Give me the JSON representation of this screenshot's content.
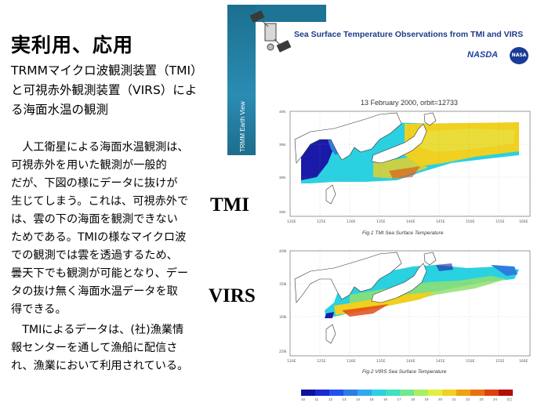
{
  "slide": {
    "title": "実利用、応用",
    "subtitle_lines": [
      "TRMMマイクロ波観測装置（TMI）",
      "と可視赤外観測装置（VIRS）によ",
      "る海面水温の観測"
    ],
    "body_lines": [
      "　人工衛星による海面水温観測は、",
      "可視赤外を用いた観測が一般的",
      "だが、下図の様にデータに抜けが",
      "生じてしまう。これは、可視赤外で",
      "は、雲の下の海面を観測できない",
      "ためである。TMIの様なマイクロ波",
      "での観測では雲を透過するため、",
      "曇天下でも観測が可能となり、デー",
      "タの抜け無く海面水温データを取",
      "得できる。",
      "　TMIによるデータは、(社)漁業情",
      "報センターを通して漁船に配信さ",
      "れ、漁業において利用されている。"
    ],
    "label_tmi": "TMI",
    "label_virs": "VIRS"
  },
  "figure": {
    "banner_title": "Sea Surface Temperature Observations from TMI and VIRS",
    "strip_text": "TRMM Earth View",
    "nasda": "NASDA",
    "nasa": "NASA",
    "date_line": "13 February 2000, orbit=12733",
    "fig1_caption": "Fig.1  TMI Sea Surface Temperature",
    "fig2_caption": "Fig.2  VIRS Sea Surface Temperature",
    "lat_ticks": [
      "40N",
      "35N",
      "30N",
      "25N"
    ],
    "lon_ticks": [
      "120E",
      "125E",
      "130E",
      "135E",
      "140E",
      "145E",
      "150E",
      "155E",
      "160E"
    ],
    "colorbar_ticks": [
      "10",
      "11",
      "12",
      "13",
      "14",
      "15",
      "16",
      "17",
      "18",
      "19",
      "20",
      "21",
      "22",
      "23",
      "24",
      "(C)"
    ],
    "colors": {
      "cold": "#1a1aa8",
      "cool": "#2e7de0",
      "mid": "#2ad1e0",
      "warm": "#f0d020",
      "hot": "#e04010",
      "banner_blue": "#1b6f8e",
      "title_blue": "#1b3b8a"
    }
  }
}
